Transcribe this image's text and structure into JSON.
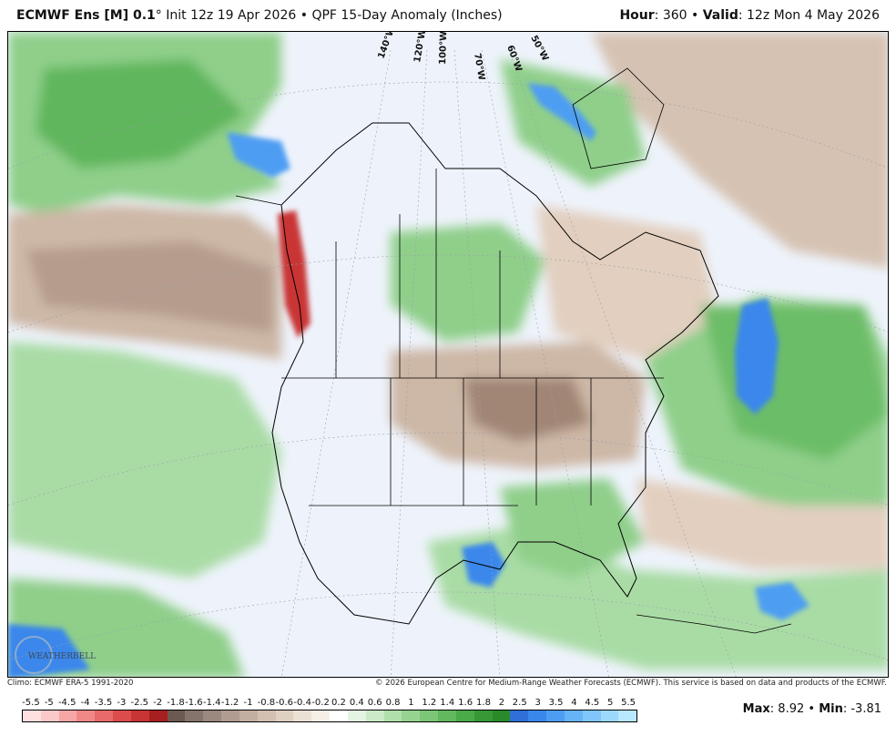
{
  "header": {
    "model": "ECMWF Ens [M] 0.1",
    "degree": "°",
    "init": "Init 12z 19 Apr 2026",
    "bullet": "•",
    "product": "QPF 15-Day Anomaly (Inches)",
    "hour_label": "Hour",
    "hour_value": ": 360 •",
    "valid_label": "Valid",
    "valid_value": ": 12z Mon 4 May 2026"
  },
  "map": {
    "longitude_labels": [
      "140°W",
      "120°W",
      "100°W",
      "70°W",
      "60°W",
      "50°W"
    ],
    "logo_text": "WEATHERBELL"
  },
  "footer": {
    "climo": "Climo: ECMWF ERA-5 1991-2020",
    "copyright": "© 2026 European Centre for Medium-Range Weather Forecasts (ECMWF). This service is based on data and products of the ECMWF."
  },
  "colorbar": {
    "labels": [
      "-5.5",
      "-5",
      "-4.5",
      "-4",
      "-3.5",
      "-3",
      "-2.5",
      "-2",
      "-1.8",
      "-1.6",
      "-1.4",
      "-1.2",
      "-1",
      "-0.8",
      "-0.6",
      "-0.4",
      "-0.2",
      "0.2",
      "0.4",
      "0.6",
      "0.8",
      "1",
      "1.2",
      "1.4",
      "1.6",
      "1.8",
      "2",
      "2.5",
      "3",
      "3.5",
      "4",
      "4.5",
      "5",
      "5.5"
    ],
    "colors": [
      "#fde0e0",
      "#fbc9c9",
      "#f7a6a6",
      "#f08888",
      "#e86a6a",
      "#dc4c4c",
      "#c93434",
      "#a81f1f",
      "#6b5a52",
      "#85746b",
      "#9b887e",
      "#b09c90",
      "#c3afa1",
      "#d3c0b1",
      "#e0d0c2",
      "#ebe0d4",
      "#f5efe8",
      "#ffffff",
      "#e4f4e2",
      "#cbeac7",
      "#b0dfab",
      "#96d391",
      "#7cc677",
      "#62b85e",
      "#4aa948",
      "#369935",
      "#2a8a2b",
      "#2f6fd8",
      "#3a87ec",
      "#4d9df3",
      "#66b3f7",
      "#80c6fa",
      "#9cd8fc",
      "#b8e8fe"
    ]
  },
  "stats": {
    "max_label": "Max",
    "max_value": ": 8.92 •",
    "min_label": "Min",
    "min_value": ": -3.81"
  }
}
